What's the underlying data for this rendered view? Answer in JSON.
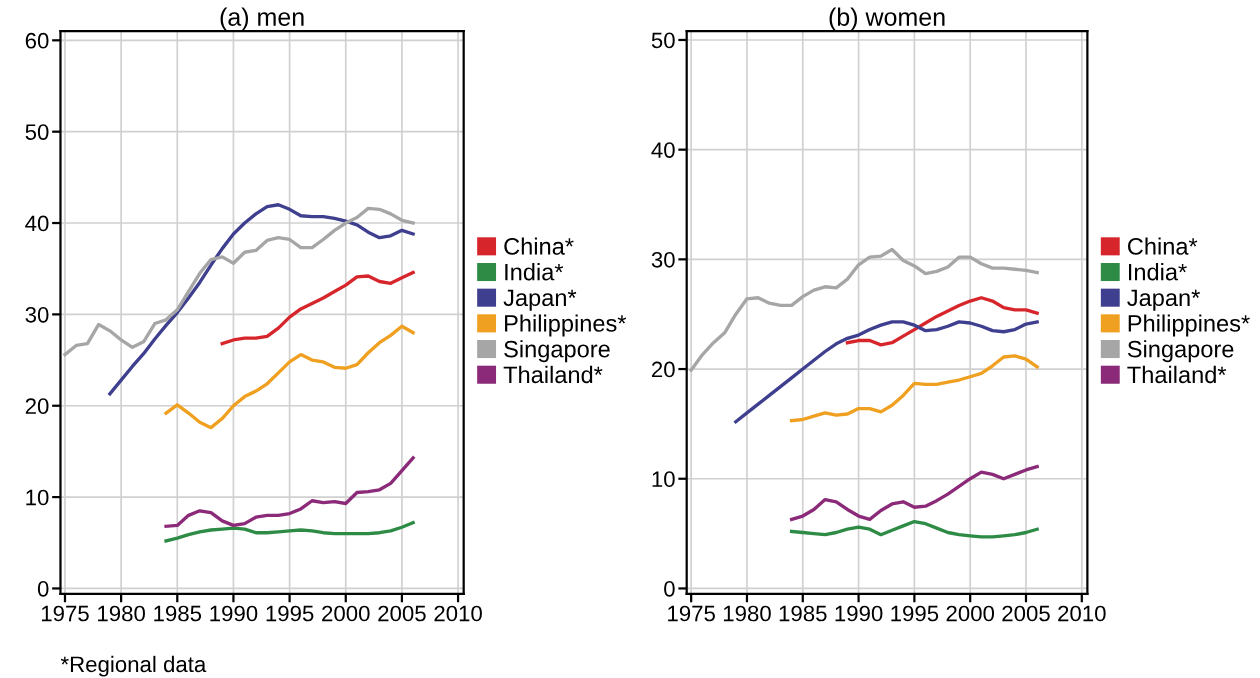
{
  "chart_data": [
    {
      "type": "line",
      "title": "(a) men",
      "xlim": [
        1974.6,
        2010.5
      ],
      "ylim": [
        -0.6,
        61
      ],
      "xticks": [
        1975,
        1980,
        1985,
        1990,
        1995,
        2000,
        2005,
        2010
      ],
      "yticks": [
        0,
        10,
        20,
        30,
        40,
        50,
        60
      ],
      "grid": true,
      "legend": "right",
      "annotations": [
        "*Regional data"
      ],
      "series": [
        {
          "name": "China*",
          "color": "#d7262b",
          "x": [
            1989,
            1990,
            1991,
            1992,
            1993,
            1994,
            1995,
            1996,
            1997,
            1998,
            1999,
            2000,
            2001,
            2002,
            2003,
            2004,
            2005,
            2006
          ],
          "values": [
            26.8,
            27.2,
            27.4,
            27.4,
            27.6,
            28.5,
            29.7,
            30.6,
            31.2,
            31.8,
            32.5,
            33.2,
            34.1,
            34.2,
            33.6,
            33.4,
            34.0,
            34.6
          ]
        },
        {
          "name": "India*",
          "color": "#2e8b45",
          "x": [
            1984,
            1985,
            1986,
            1987,
            1988,
            1989,
            1990,
            1991,
            1992,
            1993,
            1994,
            1995,
            1996,
            1997,
            1998,
            1999,
            2000,
            2001,
            2002,
            2003,
            2004,
            2005,
            2006
          ],
          "values": [
            5.2,
            5.5,
            5.9,
            6.2,
            6.4,
            6.5,
            6.6,
            6.5,
            6.1,
            6.1,
            6.2,
            6.3,
            6.4,
            6.3,
            6.1,
            6.0,
            6.0,
            6.0,
            6.0,
            6.1,
            6.3,
            6.7,
            7.2
          ]
        },
        {
          "name": "Japan*",
          "color": "#3f3f8f",
          "x": [
            1979,
            1980,
            1981,
            1982,
            1983,
            1984,
            1985,
            1986,
            1987,
            1988,
            1989,
            1990,
            1991,
            1992,
            1993,
            1994,
            1995,
            1996,
            1997,
            1998,
            1999,
            2000,
            2001,
            2002,
            2003,
            2004,
            2005,
            2006
          ],
          "values": [
            21.3,
            22.8,
            24.3,
            25.7,
            27.3,
            28.8,
            30.2,
            31.8,
            33.5,
            35.4,
            37.2,
            38.8,
            40.0,
            41.0,
            41.8,
            42.0,
            41.5,
            40.8,
            40.7,
            40.7,
            40.5,
            40.2,
            39.8,
            39.0,
            38.4,
            38.6,
            39.2,
            38.8
          ]
        },
        {
          "name": "Philippines*",
          "color": "#f0a020",
          "x": [
            1984,
            1985,
            1986,
            1987,
            1988,
            1989,
            1990,
            1991,
            1992,
            1993,
            1994,
            1995,
            1996,
            1997,
            1998,
            1999,
            2000,
            2001,
            2002,
            2003,
            2004,
            2005,
            2006
          ],
          "values": [
            19.2,
            20.1,
            19.2,
            18.2,
            17.6,
            18.6,
            20.0,
            21.0,
            21.6,
            22.4,
            23.6,
            24.8,
            25.6,
            25.0,
            24.8,
            24.2,
            24.1,
            24.5,
            25.8,
            26.9,
            27.7,
            28.7,
            28.0
          ]
        },
        {
          "name": "Singapore",
          "color": "#a6a6a6",
          "x": [
            1975,
            1976,
            1977,
            1978,
            1979,
            1980,
            1981,
            1982,
            1983,
            1984,
            1985,
            1986,
            1987,
            1988,
            1989,
            1990,
            1991,
            1992,
            1993,
            1994,
            1995,
            1996,
            1997,
            1998,
            1999,
            2000,
            2001,
            2002,
            2003,
            2004,
            2005,
            2006
          ],
          "values": [
            25.6,
            26.6,
            26.8,
            28.9,
            28.2,
            27.2,
            26.4,
            27.0,
            29.0,
            29.4,
            30.5,
            32.5,
            34.5,
            36.0,
            36.3,
            35.6,
            36.8,
            37.0,
            38.1,
            38.4,
            38.2,
            37.3,
            37.3,
            38.2,
            39.2,
            40.0,
            40.6,
            41.6,
            41.5,
            41.0,
            40.3,
            40.0
          ]
        },
        {
          "name": "Thailand*",
          "color": "#8b2a78",
          "x": [
            1984,
            1985,
            1986,
            1987,
            1988,
            1989,
            1990,
            1991,
            1992,
            1993,
            1994,
            1995,
            1996,
            1997,
            1998,
            1999,
            2000,
            2001,
            2002,
            2003,
            2004,
            2005,
            2006
          ],
          "values": [
            6.8,
            6.9,
            8.0,
            8.5,
            8.3,
            7.4,
            6.9,
            7.1,
            7.8,
            8.0,
            8.0,
            8.2,
            8.7,
            9.6,
            9.4,
            9.5,
            9.3,
            10.5,
            10.6,
            10.8,
            11.5,
            12.9,
            14.3
          ]
        }
      ]
    },
    {
      "type": "line",
      "title": "(b) women",
      "xlim": [
        1974.6,
        2010.5
      ],
      "ylim": [
        -0.5,
        50.8
      ],
      "xticks": [
        1975,
        1980,
        1985,
        1990,
        1995,
        2000,
        2005,
        2010
      ],
      "yticks": [
        0,
        10,
        20,
        30,
        40,
        50
      ],
      "grid": true,
      "legend": "right",
      "series": [
        {
          "name": "China*",
          "color": "#d7262b",
          "x": [
            1989,
            1990,
            1991,
            1992,
            1993,
            1994,
            1995,
            1996,
            1997,
            1998,
            1999,
            2000,
            2001,
            2002,
            2003,
            2004,
            2005,
            2006
          ],
          "values": [
            22.4,
            22.6,
            22.6,
            22.2,
            22.4,
            23.0,
            23.6,
            24.2,
            24.8,
            25.3,
            25.8,
            26.2,
            26.5,
            26.2,
            25.6,
            25.4,
            25.4,
            25.1
          ]
        },
        {
          "name": "India*",
          "color": "#2e8b45",
          "x": [
            1984,
            1985,
            1986,
            1987,
            1988,
            1989,
            1990,
            1991,
            1992,
            1993,
            1994,
            1995,
            1996,
            1997,
            1998,
            1999,
            2000,
            2001,
            2002,
            2003,
            2004,
            2005,
            2006
          ],
          "values": [
            5.2,
            5.1,
            5.0,
            4.9,
            5.1,
            5.4,
            5.6,
            5.4,
            4.9,
            5.3,
            5.7,
            6.1,
            5.9,
            5.5,
            5.1,
            4.9,
            4.8,
            4.7,
            4.7,
            4.8,
            4.9,
            5.1,
            5.4
          ]
        },
        {
          "name": "Japan*",
          "color": "#3f3f8f",
          "x": [
            1979,
            1980,
            1981,
            1982,
            1983,
            1984,
            1985,
            1986,
            1987,
            1988,
            1989,
            1990,
            1991,
            1992,
            1993,
            1994,
            1995,
            1996,
            1997,
            1998,
            1999,
            2000,
            2001,
            2002,
            2003,
            2004,
            2005,
            2006
          ],
          "values": [
            15.2,
            16.0,
            16.8,
            17.6,
            18.4,
            19.2,
            20.0,
            20.8,
            21.6,
            22.3,
            22.8,
            23.1,
            23.6,
            24.0,
            24.3,
            24.3,
            24.0,
            23.5,
            23.6,
            23.9,
            24.3,
            24.2,
            23.9,
            23.5,
            23.4,
            23.6,
            24.1,
            24.3
          ]
        },
        {
          "name": "Philippines*",
          "color": "#f0a020",
          "x": [
            1984,
            1985,
            1986,
            1987,
            1988,
            1989,
            1990,
            1991,
            1992,
            1993,
            1994,
            1995,
            1996,
            1997,
            1998,
            1999,
            2000,
            2001,
            2002,
            2003,
            2004,
            2005,
            2006
          ],
          "values": [
            15.3,
            15.4,
            15.7,
            16.0,
            15.8,
            15.9,
            16.4,
            16.4,
            16.1,
            16.7,
            17.6,
            18.7,
            18.6,
            18.6,
            18.8,
            19.0,
            19.3,
            19.6,
            20.3,
            21.1,
            21.2,
            20.9,
            20.2
          ]
        },
        {
          "name": "Singapore",
          "color": "#a6a6a6",
          "x": [
            1975,
            1976,
            1977,
            1978,
            1979,
            1980,
            1981,
            1982,
            1983,
            1984,
            1985,
            1986,
            1987,
            1988,
            1989,
            1990,
            1991,
            1992,
            1993,
            1994,
            1995,
            1996,
            1997,
            1998,
            1999,
            2000,
            2001,
            2002,
            2003,
            2004,
            2005,
            2006
          ],
          "values": [
            19.9,
            21.3,
            22.4,
            23.3,
            25.0,
            26.4,
            26.5,
            26.0,
            25.8,
            25.8,
            26.6,
            27.2,
            27.5,
            27.4,
            28.2,
            29.5,
            30.2,
            30.3,
            30.9,
            29.9,
            29.4,
            28.7,
            28.9,
            29.3,
            30.2,
            30.2,
            29.6,
            29.2,
            29.2,
            29.1,
            29.0,
            28.8
          ]
        },
        {
          "name": "Thailand*",
          "color": "#8b2a78",
          "x": [
            1984,
            1985,
            1986,
            1987,
            1988,
            1989,
            1990,
            1991,
            1992,
            1993,
            1994,
            1995,
            1996,
            1997,
            1998,
            1999,
            2000,
            2001,
            2002,
            2003,
            2004,
            2005,
            2006
          ],
          "values": [
            6.3,
            6.6,
            7.2,
            8.1,
            7.9,
            7.2,
            6.6,
            6.3,
            7.1,
            7.7,
            7.9,
            7.4,
            7.5,
            8.0,
            8.6,
            9.3,
            10.0,
            10.6,
            10.4,
            10.0,
            10.4,
            10.8,
            11.1
          ]
        }
      ]
    }
  ]
}
